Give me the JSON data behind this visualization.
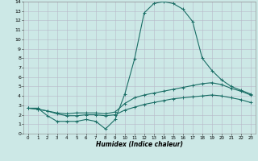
{
  "bg_color": "#cce8e6",
  "grid_color": "#b8b8c8",
  "line_color": "#1a6e66",
  "xlabel": "Humidex (Indice chaleur)",
  "xlim": [
    -0.5,
    23.5
  ],
  "ylim": [
    0,
    14
  ],
  "xticks": [
    0,
    1,
    2,
    3,
    4,
    5,
    6,
    7,
    8,
    9,
    10,
    11,
    12,
    13,
    14,
    15,
    16,
    17,
    18,
    19,
    20,
    21,
    22,
    23
  ],
  "yticks": [
    0,
    1,
    2,
    3,
    4,
    5,
    6,
    7,
    8,
    9,
    10,
    11,
    12,
    13,
    14
  ],
  "curve1_x": [
    0,
    1,
    2,
    3,
    4,
    5,
    6,
    7,
    8,
    9,
    10,
    11,
    12,
    13,
    14,
    15,
    16,
    17,
    18,
    19,
    20,
    21,
    22,
    23
  ],
  "curve1_y": [
    2.7,
    2.7,
    1.9,
    1.3,
    1.3,
    1.3,
    1.5,
    1.3,
    0.5,
    1.5,
    4.2,
    7.9,
    12.8,
    13.8,
    14.0,
    13.8,
    13.2,
    11.9,
    8.0,
    6.7,
    5.7,
    5.0,
    4.6,
    4.2
  ],
  "curve2_x": [
    0,
    1,
    2,
    3,
    4,
    5,
    6,
    7,
    8,
    9,
    10,
    11,
    12,
    13,
    14,
    15,
    16,
    17,
    18,
    19,
    20,
    21,
    22,
    23
  ],
  "curve2_y": [
    2.7,
    2.6,
    2.4,
    2.2,
    2.1,
    2.2,
    2.2,
    2.2,
    2.1,
    2.3,
    3.2,
    3.8,
    4.1,
    4.3,
    4.5,
    4.7,
    4.9,
    5.1,
    5.3,
    5.4,
    5.2,
    4.8,
    4.5,
    4.1
  ],
  "curve3_x": [
    0,
    1,
    2,
    3,
    4,
    5,
    6,
    7,
    8,
    9,
    10,
    11,
    12,
    13,
    14,
    15,
    16,
    17,
    18,
    19,
    20,
    21,
    22,
    23
  ],
  "curve3_y": [
    2.7,
    2.6,
    2.4,
    2.1,
    1.9,
    1.9,
    2.0,
    2.0,
    1.9,
    2.0,
    2.5,
    2.8,
    3.1,
    3.3,
    3.5,
    3.7,
    3.8,
    3.9,
    4.0,
    4.1,
    4.0,
    3.8,
    3.6,
    3.3
  ],
  "marker": "+",
  "marker_size": 2.5,
  "lw": 0.8
}
